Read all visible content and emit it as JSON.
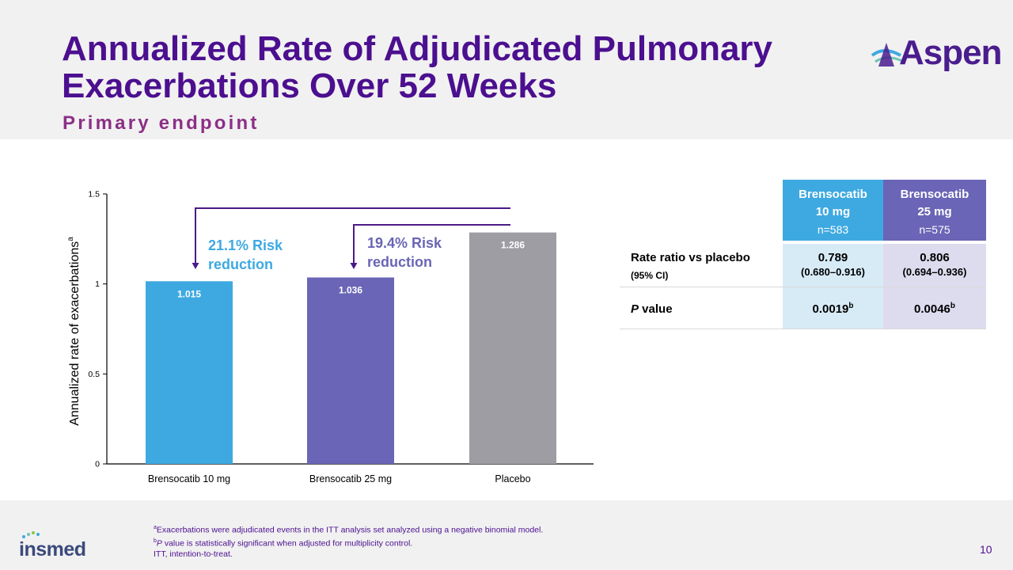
{
  "header": {
    "title_line1": "Annualized Rate of Adjudicated Pulmonary",
    "title_line2": "Exacerbations Over 52 Weeks",
    "subtitle": "Primary endpoint",
    "logo_text": "Aspen"
  },
  "chart_data": {
    "type": "bar",
    "ylabel": "Annualized  rate of exacerbations",
    "ylabel_sup": "a",
    "ylim": [
      0,
      1.5
    ],
    "yticks": [
      "0",
      "0.5",
      "1",
      "1.5"
    ],
    "ytick_values": [
      0,
      0.5,
      1,
      1.5
    ],
    "categories": [
      "Brensocatib 10 mg",
      "Brensocatib 25 mg",
      "Placebo"
    ],
    "values": [
      1.015,
      1.036,
      1.286
    ],
    "value_labels": [
      "1.015",
      "1.036",
      "1.286"
    ],
    "colors": [
      "#3ea9e1",
      "#6a65b6",
      "#9d9da3"
    ],
    "annotations": [
      {
        "line1": "21.1% Risk",
        "line2": "reduction",
        "color": "#3ea9e1"
      },
      {
        "line1": "19.4% Risk",
        "line2": "reduction",
        "color": "#6a65b6"
      }
    ],
    "bracket_color": "#4b1a86"
  },
  "table": {
    "col1": {
      "name": "Brensocatib",
      "dose": "10 mg",
      "n": "n=583"
    },
    "col2": {
      "name": "Brensocatib",
      "dose": "25 mg",
      "n": "n=575"
    },
    "row1": {
      "label": "Rate ratio vs placebo",
      "sublabel": "(95% CI)",
      "v1": "0.789",
      "ci1": "(0.680–0.916)",
      "v2": "0.806",
      "ci2": "(0.694–0.936)"
    },
    "row2": {
      "label_italic": "P",
      "label_rest": " value",
      "v1": "0.0019",
      "v2": "0.0046",
      "sup": "b"
    },
    "colors": {
      "head1": "#3ea9e1",
      "head2": "#6a65b6",
      "body1": "#d7ebf7",
      "body2": "#dddbee"
    }
  },
  "footer": {
    "note_a_sup": "a",
    "note_a": "Exacerbations  were  adjudicated  events  in  the  ITT  analysis  set  analyzed  using  a  negative  binomial  model.",
    "note_b_sup": "b",
    "note_b_italic": "P",
    "note_b": " value  is statistically  significant  when  adjusted  for  multiplicity  control.",
    "note_itt": "ITT,  intention-to-treat.",
    "logo_text": "insmed",
    "page_number": "10"
  }
}
